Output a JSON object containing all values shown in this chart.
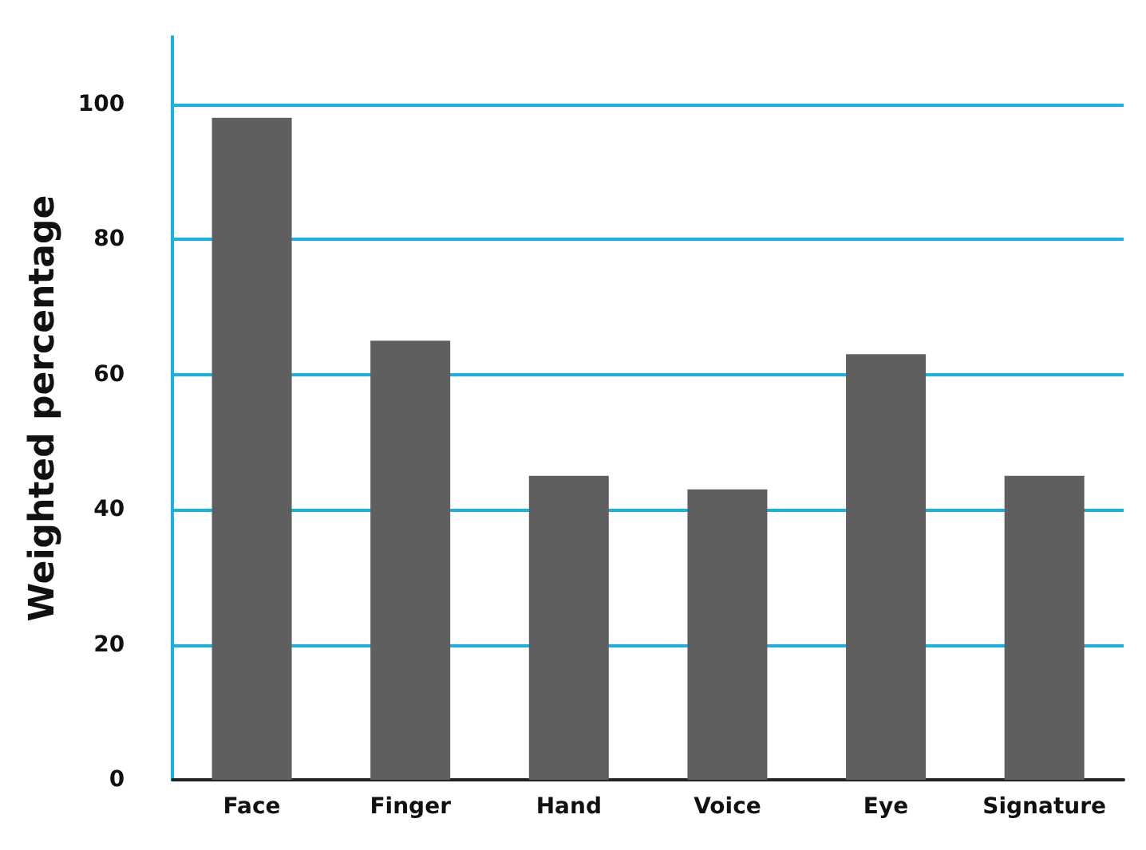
{
  "chart_data": {
    "type": "bar",
    "ylabel": "Weighted percentage",
    "categories": [
      "Face",
      "Finger",
      "Hand",
      "Voice",
      "Eye",
      "Signature"
    ],
    "values": [
      98,
      65,
      45,
      43,
      63,
      45
    ],
    "color": "#5f5f5f",
    "ylim": [
      0,
      110
    ],
    "yticks": [
      0,
      20,
      40,
      60,
      80,
      100
    ],
    "grid": "y"
  }
}
